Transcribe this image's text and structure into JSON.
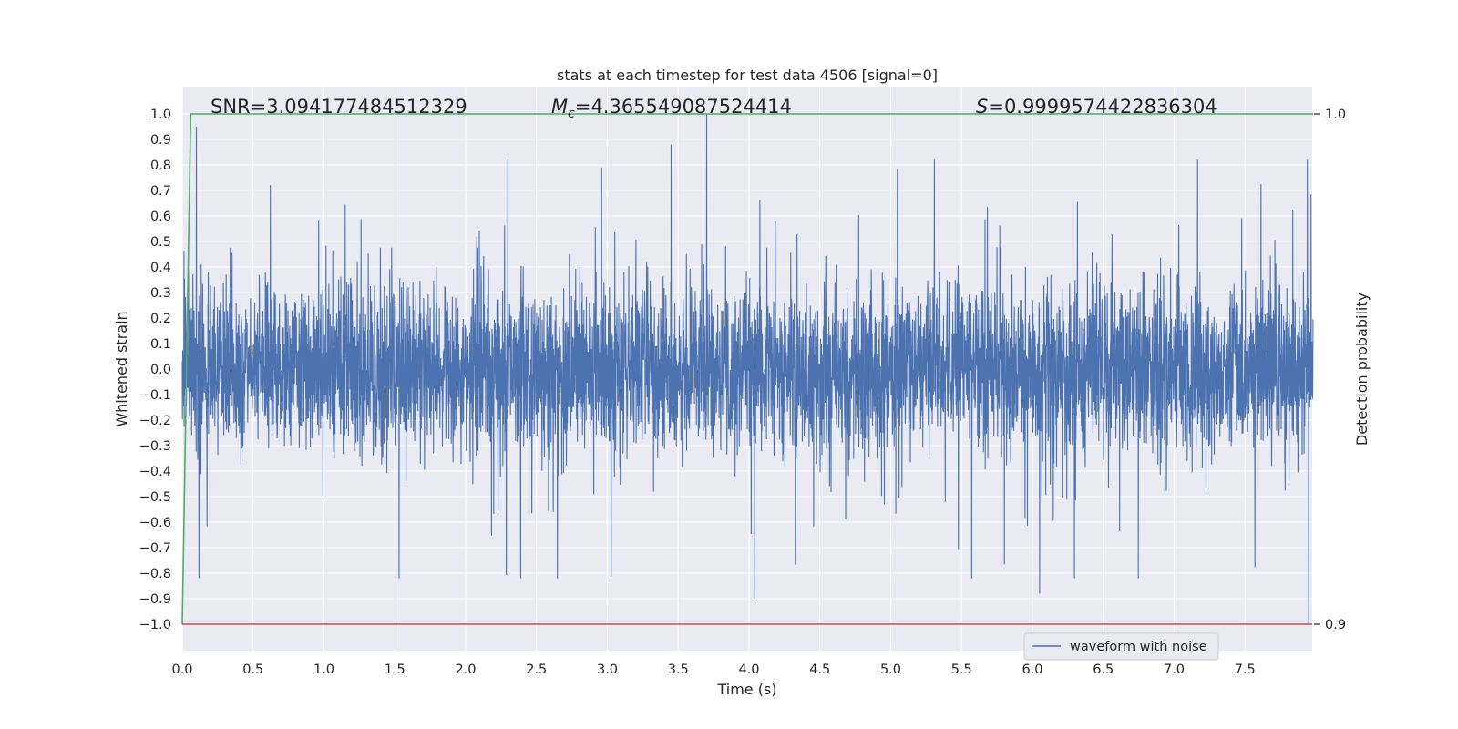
{
  "chart_data": {
    "type": "line",
    "title": "stats at each timestep for test data 4506 [signal=0]",
    "xlabel": "Time (s)",
    "ylabel": "Whitened strain",
    "y2label": "Detection probability",
    "xlim": [
      0.0,
      8.0
    ],
    "ylim": [
      -1.1,
      1.1
    ],
    "y2lim": [
      0.898,
      1.0
    ],
    "xticks": [
      "0.0",
      "0.5",
      "1.0",
      "1.5",
      "2.0",
      "2.5",
      "3.0",
      "3.5",
      "4.0",
      "4.5",
      "5.0",
      "5.5",
      "6.0",
      "6.5",
      "7.0",
      "7.5"
    ],
    "yticks": [
      "1.0",
      "0.9",
      "0.8",
      "0.7",
      "0.6",
      "0.5",
      "0.4",
      "0.3",
      "0.2",
      "0.1",
      "0.0",
      "−0.1",
      "−0.2",
      "−0.3",
      "−0.4",
      "−0.5",
      "−0.6",
      "−0.7",
      "−0.8",
      "−0.9",
      "−1.0"
    ],
    "y2ticks": [
      "1.0",
      "0.9"
    ],
    "annotations": {
      "snr": "SNR=3.094177484512329",
      "mc_symbol": "M",
      "mc_sub": "c",
      "mc_value": "=4.365549087524414",
      "s_symbol": "S",
      "s_value": "=0.9999574422836304"
    },
    "legend": {
      "label": "waveform with noise",
      "location": "lower-right"
    },
    "series": [
      {
        "name": "waveform with noise",
        "axis": "left",
        "color": "#4c72b0",
        "description_of_values": "noise from 0.0 to 7.98 s, amplitude mostly within ±0.5, peaks near ±0.95",
        "x_range": [
          0.0,
          7.98
        ],
        "peaks": [
          [
            0.1,
            0.95
          ],
          [
            3.7,
            1.0
          ],
          [
            3.45,
            0.88
          ],
          [
            7.95,
            -1.0
          ],
          [
            4.04,
            -0.9
          ],
          [
            6.05,
            -0.88
          ]
        ]
      },
      {
        "axis": "right",
        "color": "#55a868",
        "x": [
          0.0,
          0.06,
          0.2,
          7.98
        ],
        "y": [
          0.9,
          1.0,
          1.0,
          1.0
        ]
      },
      {
        "axis": "left",
        "color": "#c44e52",
        "x": [
          0.0,
          8.0
        ],
        "y": [
          -1.0,
          -1.0
        ]
      }
    ],
    "grid": true,
    "background": "#eaeaf2"
  }
}
